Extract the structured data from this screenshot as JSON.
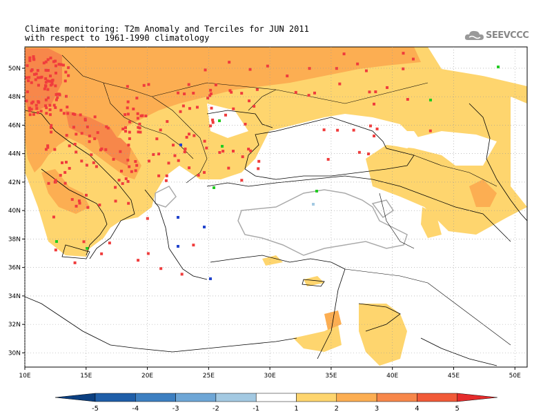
{
  "title": {
    "line1": "Climate monitoring: T2m Anomaly and Terciles for JUN 2011",
    "line2": "with respect to 1961-1990 climatology"
  },
  "logo": {
    "text": "SEEVCCC",
    "icon": "cloud-icon"
  },
  "map": {
    "lon_range": [
      10,
      51
    ],
    "lat_range": [
      29,
      51.5
    ],
    "lon_ticks": [
      {
        "v": 10,
        "label": "10E"
      },
      {
        "v": 15,
        "label": "15E"
      },
      {
        "v": 20,
        "label": "20E"
      },
      {
        "v": 25,
        "label": "25E"
      },
      {
        "v": 30,
        "label": "30E"
      },
      {
        "v": 35,
        "label": "35E"
      },
      {
        "v": 40,
        "label": "40E"
      },
      {
        "v": 45,
        "label": "45E"
      },
      {
        "v": 50,
        "label": "50E"
      }
    ],
    "lat_ticks": [
      {
        "v": 30,
        "label": "30N"
      },
      {
        "v": 32,
        "label": "32N"
      },
      {
        "v": 34,
        "label": "34N"
      },
      {
        "v": 36,
        "label": "36N"
      },
      {
        "v": 38,
        "label": "38N"
      },
      {
        "v": 40,
        "label": "40N"
      },
      {
        "v": 42,
        "label": "42N"
      },
      {
        "v": 44,
        "label": "44N"
      },
      {
        "v": 46,
        "label": "46N"
      },
      {
        "v": 48,
        "label": "48N"
      },
      {
        "v": 50,
        "label": "50N"
      }
    ]
  },
  "colorbar": {
    "labels": [
      "-5",
      "-4",
      "-3",
      "-2",
      "-1",
      "1",
      "2",
      "3",
      "4",
      "5"
    ],
    "colors": [
      "#1f5ea8",
      "#3d7fc1",
      "#6ea6d6",
      "#a3c9e2",
      "#ffffff",
      "#fed56e",
      "#fcae52",
      "#f7874a",
      "#f15a38"
    ],
    "under_color": "#0b3f80",
    "over_color": "#e52b2b"
  },
  "colors": {
    "anom_1_2": "#fed56e",
    "anom_2_3": "#fcae52",
    "anom_3_4": "#f7874a",
    "upper_tercile": "#f03c3c",
    "middle_tercile": "#22cc22",
    "lower_tercile": "#2244cc",
    "neg_contour": "#aaaaaa",
    "coast": "#000000"
  }
}
